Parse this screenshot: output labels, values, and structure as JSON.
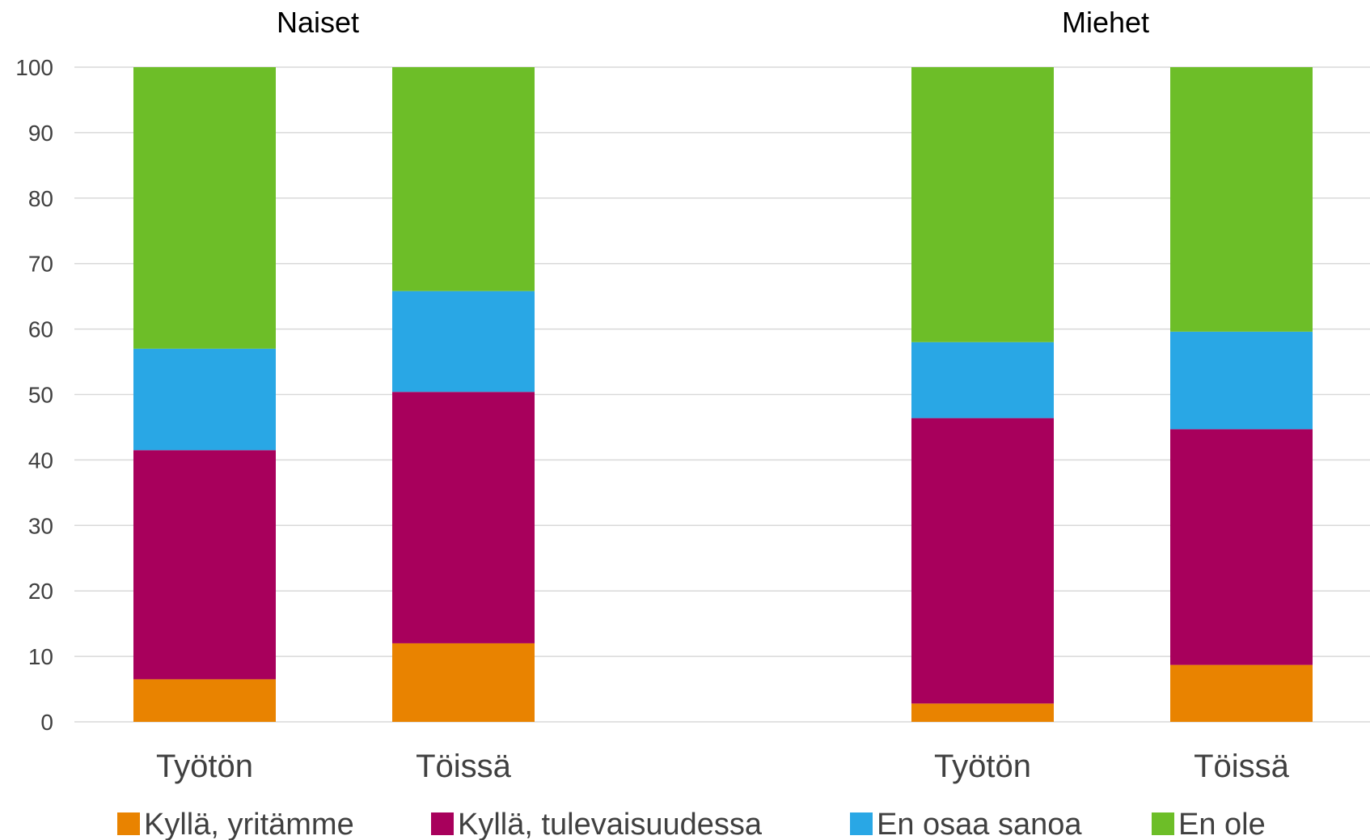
{
  "chart_data": {
    "type": "bar",
    "stacked": true,
    "groups": [
      {
        "title": "Naiset",
        "categories": [
          "Työtön",
          "Töissä"
        ]
      },
      {
        "title": "Miehet",
        "categories": [
          "Työtön",
          "Töissä"
        ]
      }
    ],
    "series": [
      {
        "name": "Kyllä, yritämme",
        "color": "#e98300",
        "values": [
          6.5,
          12,
          2.8,
          8.7
        ]
      },
      {
        "name": "Kyllä, tulevaisuudessa",
        "color": "#a8005c",
        "values": [
          35,
          38.4,
          43.6,
          36
        ]
      },
      {
        "name": "En osaa sanoa",
        "color": "#29a7e5",
        "values": [
          15.5,
          15.4,
          11.6,
          14.9
        ]
      },
      {
        "name": "En ole",
        "color": "#6dbe28",
        "values": [
          43,
          34.2,
          42,
          40.4
        ]
      }
    ],
    "ylim": [
      0,
      100
    ],
    "yticks": [
      0,
      10,
      20,
      30,
      40,
      50,
      60,
      70,
      80,
      90,
      100
    ],
    "grid": true,
    "legend": "bottom"
  }
}
